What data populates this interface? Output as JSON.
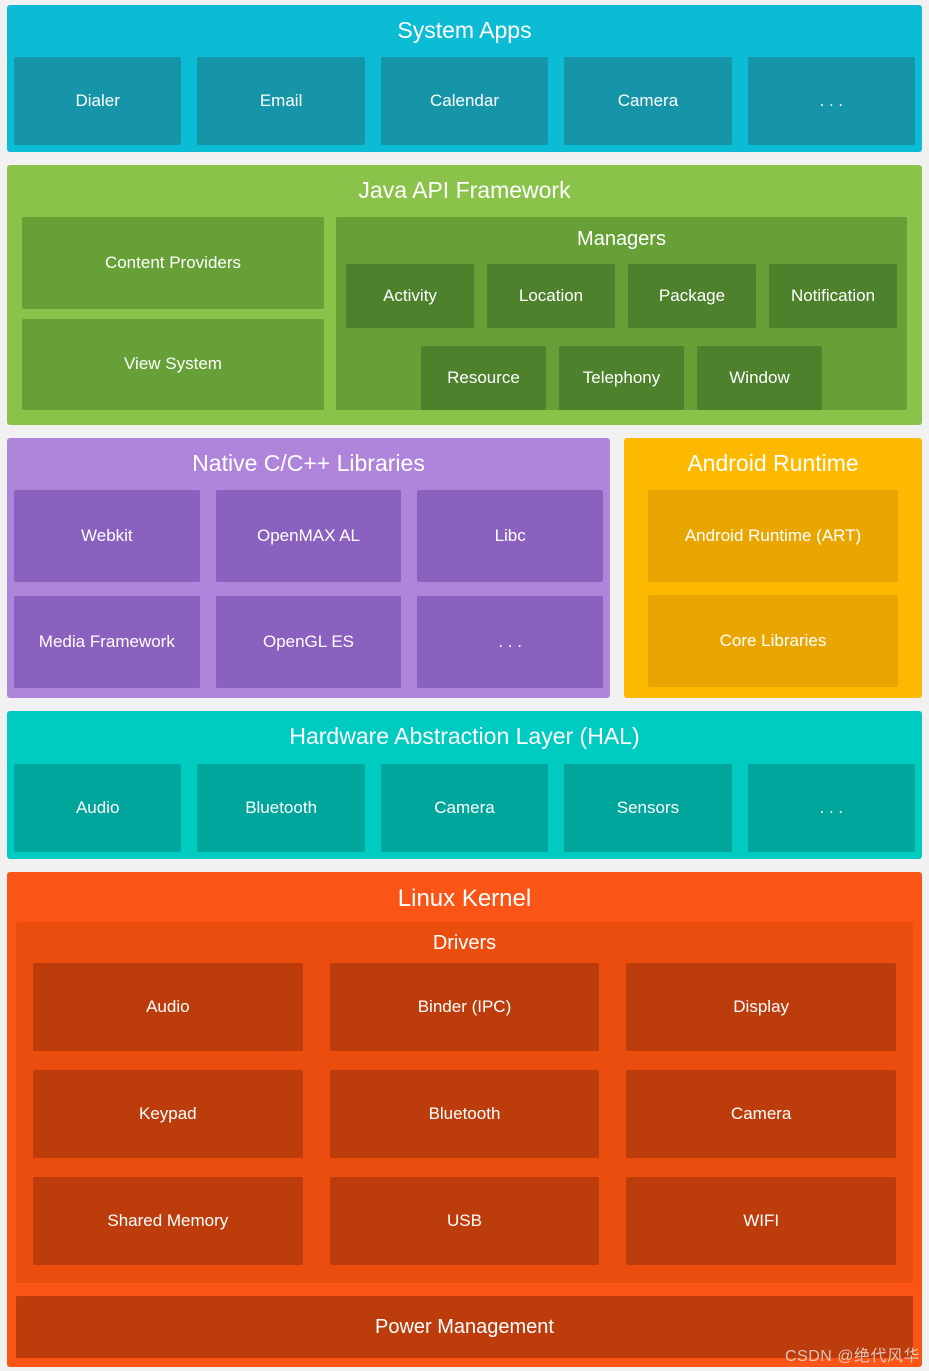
{
  "layers": {
    "system_apps": {
      "title": "System Apps",
      "items": [
        "Dialer",
        "Email",
        "Calendar",
        "Camera",
        ". . ."
      ]
    },
    "java_api": {
      "title": "Java API Framework",
      "left_items": [
        "Content Providers",
        "View System"
      ],
      "managers": {
        "title": "Managers",
        "row1": [
          "Activity",
          "Location",
          "Package",
          "Notification"
        ],
        "row2": [
          "Resource",
          "Telephony",
          "Window"
        ]
      }
    },
    "native_libs": {
      "title": "Native C/C++ Libraries",
      "items": [
        "Webkit",
        "OpenMAX AL",
        "Libc",
        "Media Framework",
        "OpenGL ES",
        ". . ."
      ]
    },
    "android_runtime": {
      "title": "Android Runtime",
      "items": [
        "Android Runtime (ART)",
        "Core Libraries"
      ]
    },
    "hal": {
      "title": "Hardware Abstraction Layer (HAL)",
      "items": [
        "Audio",
        "Bluetooth",
        "Camera",
        "Sensors",
        ". . ."
      ]
    },
    "linux_kernel": {
      "title": "Linux Kernel",
      "drivers": {
        "title": "Drivers",
        "items": [
          "Audio",
          "Binder (IPC)",
          "Display",
          "Keypad",
          "Bluetooth",
          "Camera",
          "Shared Memory",
          "USB",
          "WIFI"
        ]
      },
      "power": "Power Management"
    }
  },
  "watermark": "CSDN @绝代风华",
  "colors": {
    "background": "#F1F1F2",
    "system_apps_bg": "#0BBCD4",
    "system_apps_item_bg": "#1695A8",
    "java_bg": "#8AC24A",
    "java_mid_bg": "#67A036",
    "java_dark_bg": "#4D812C",
    "native_bg": "#AF85DB",
    "native_item_bg": "#8B61C0",
    "runtime_bg": "#FCB900",
    "runtime_item_bg": "#E9A602",
    "hal_bg": "#00CBC0",
    "hal_item_bg": "#00A69B",
    "kernel_bg": "#FA5416",
    "drivers_bg": "#EB4D0E",
    "kernel_item_bg": "#BD3C0C",
    "text": "#FFFFFF"
  }
}
